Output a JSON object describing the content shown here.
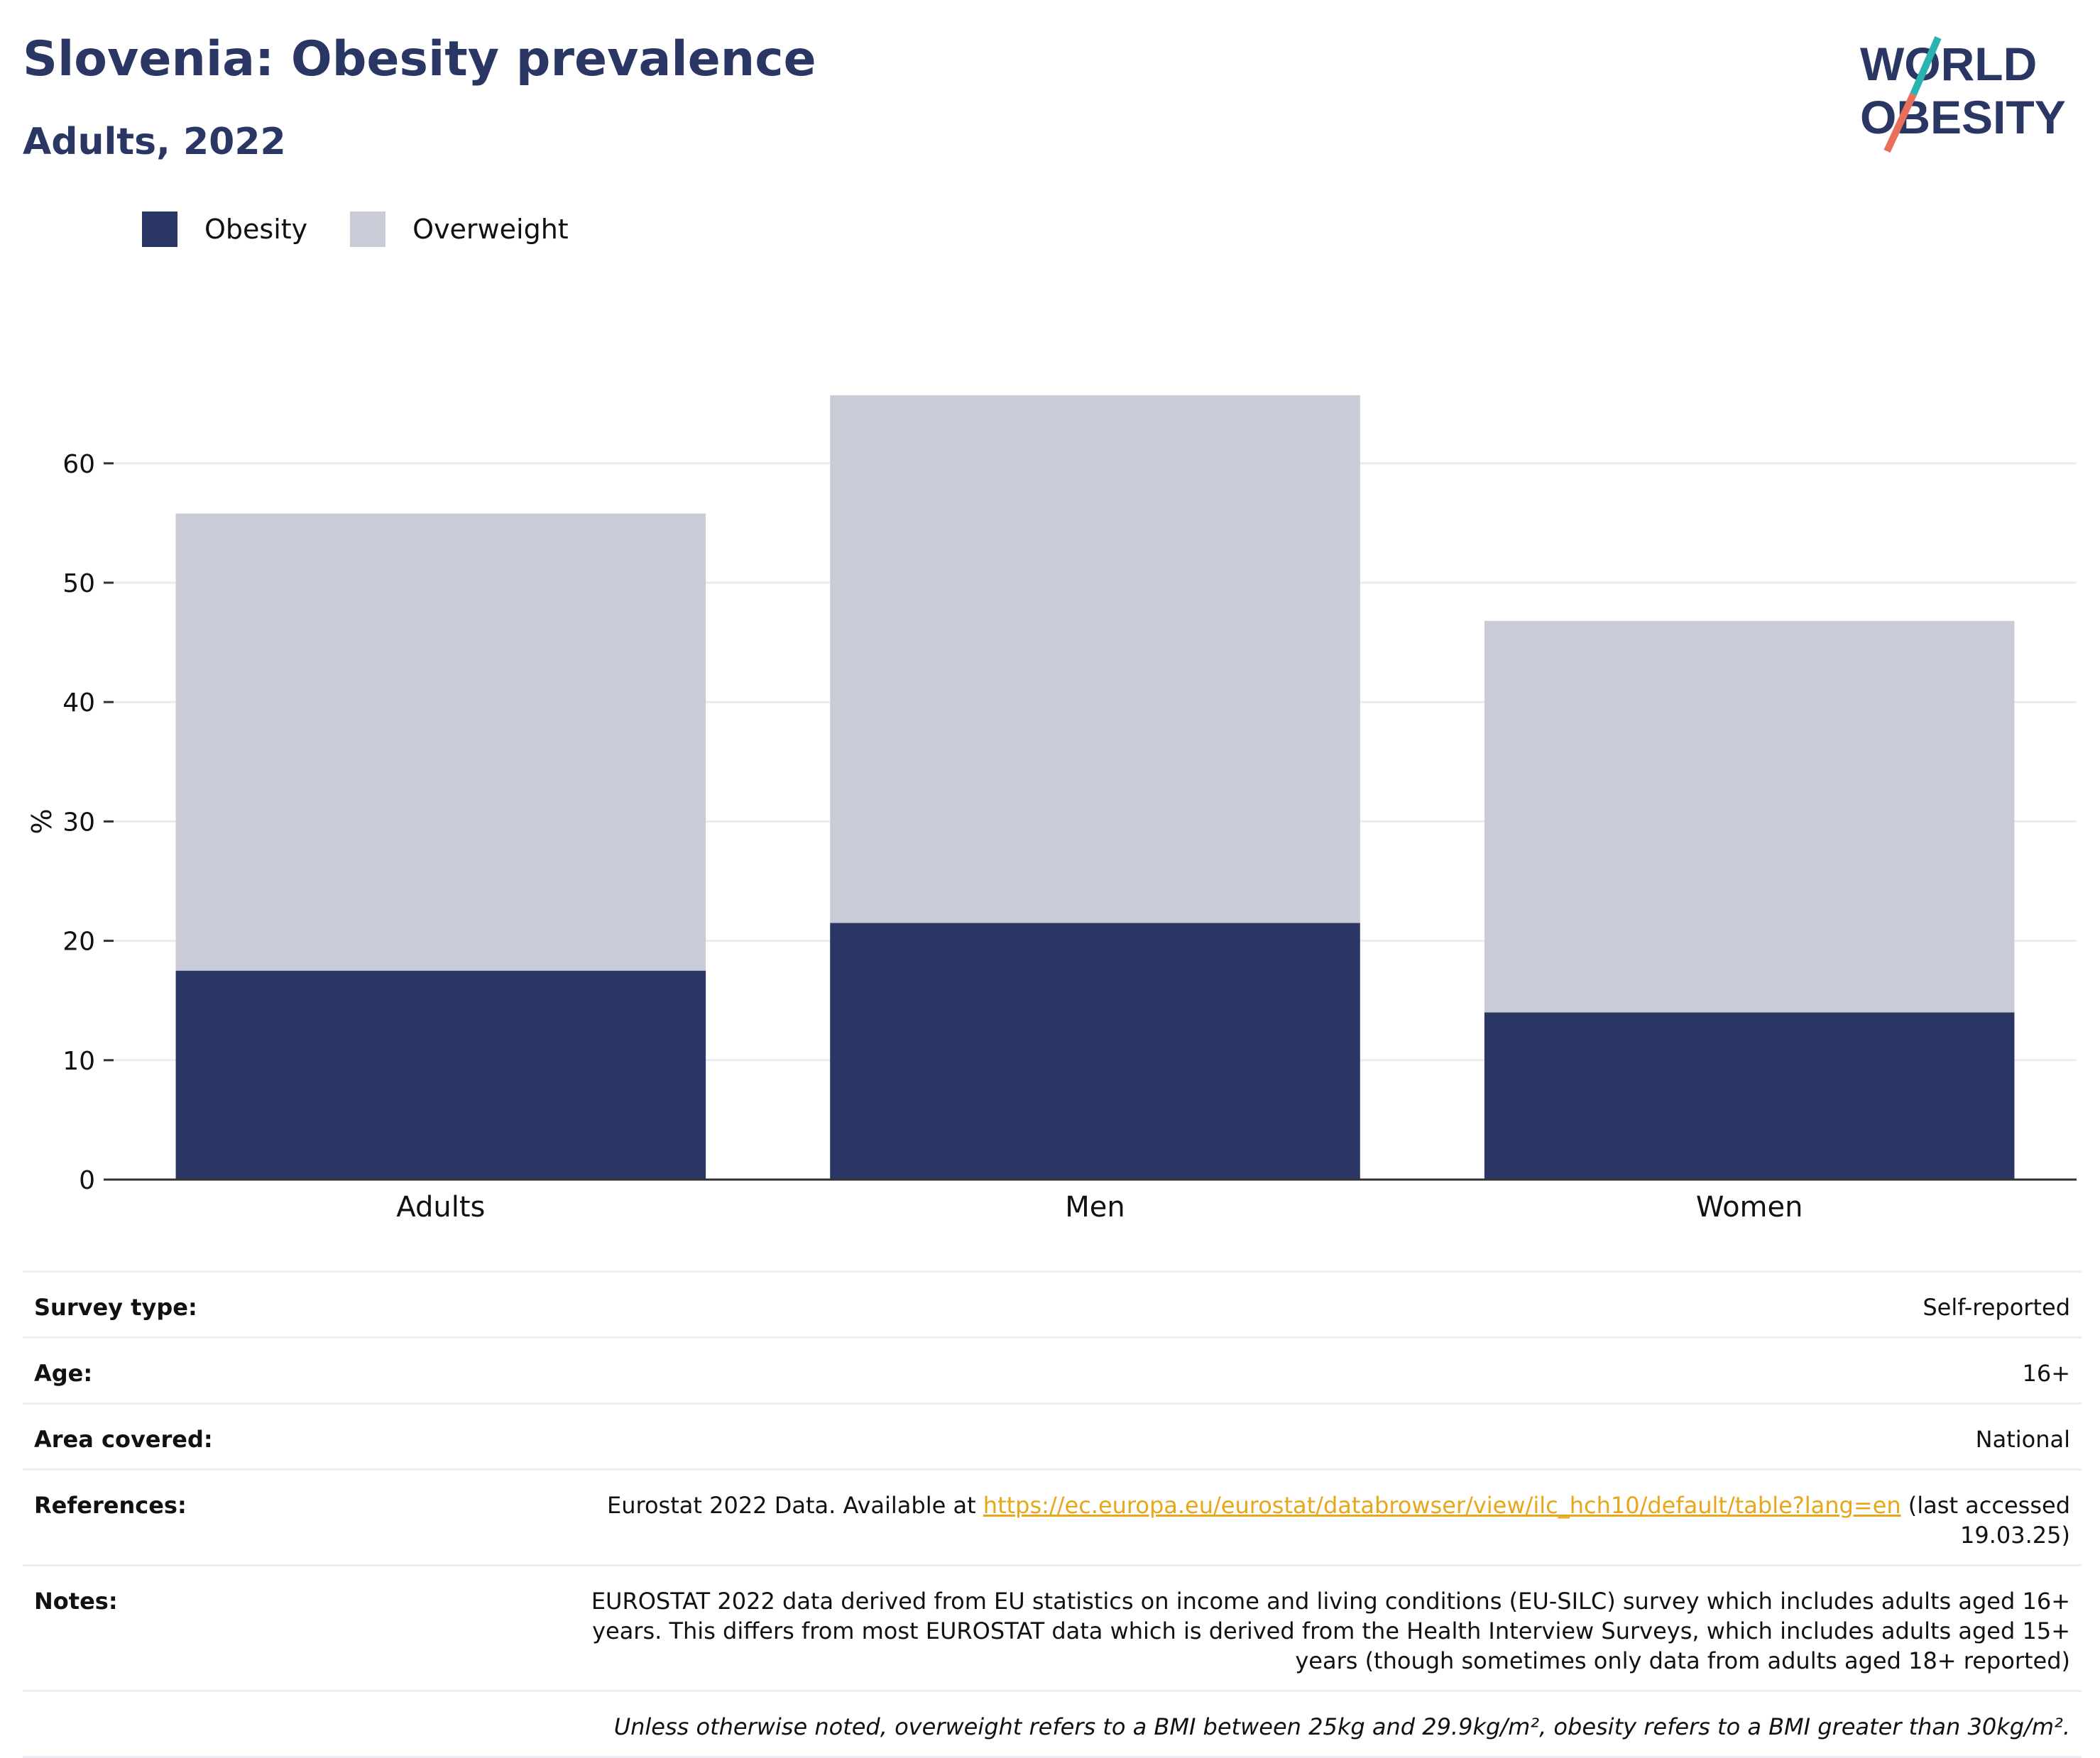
{
  "header": {
    "title": "Slovenia: Obesity prevalence",
    "subtitle": "Adults, 2022",
    "logo_line1": "WORLD",
    "logo_line2": "OBESITY"
  },
  "legend": {
    "items": [
      {
        "label": "Obesity",
        "color": "#2a3663"
      },
      {
        "label": "Overweight",
        "color": "#c9cbd6"
      }
    ]
  },
  "chart_data": {
    "type": "bar",
    "stacked": true,
    "categories": [
      "Adults",
      "Men",
      "Women"
    ],
    "series": [
      {
        "name": "Obesity",
        "color": "#2a3663",
        "values": [
          17.5,
          21.5,
          14.0
        ]
      },
      {
        "name": "Overweight",
        "color": "#c9cbd6",
        "values": [
          38.3,
          44.2,
          32.8
        ]
      }
    ],
    "ylabel": "%",
    "xlabel": "",
    "ylim": [
      0,
      70
    ],
    "yticks": [
      0,
      10,
      20,
      30,
      40,
      50,
      60
    ],
    "grid": true,
    "legend_position": "top-left"
  },
  "meta": {
    "survey_type": {
      "label": "Survey type:",
      "value": "Self-reported"
    },
    "age": {
      "label": "Age:",
      "value": "16+"
    },
    "area": {
      "label": "Area covered:",
      "value": "National"
    },
    "references": {
      "label": "References:",
      "prefix": "Eurostat 2022 Data. Available at ",
      "link": "https://ec.europa.eu/eurostat/databrowser/view/ilc_hch10/default/table?lang=en",
      "suffix": " (last accessed 19.03.25)"
    },
    "notes": {
      "label": "Notes:",
      "value": "EUROSTAT 2022 data derived from EU statistics on income and living conditions (EU-SILC) survey which includes adults aged 16+ years. This differs from most EUROSTAT data which is derived from the Health Interview Surveys, which includes adults aged 15+ years (though sometimes only data from adults aged 18+ reported)"
    },
    "footnote": "Unless otherwise noted, overweight refers to a BMI between 25kg and 29.9kg/m², obesity refers to a BMI greater than 30kg/m²."
  }
}
